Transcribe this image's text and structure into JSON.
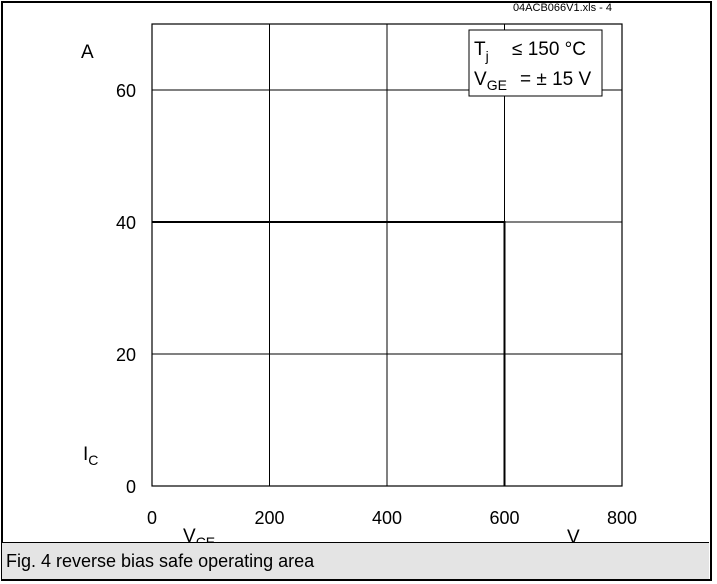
{
  "source_ref": "04ACB066V1.xls - 4",
  "caption": "Fig. 4 reverse bias safe operating area",
  "y_unit": "A",
  "x_unit": "V",
  "y_symbol": {
    "base": "I",
    "sub": "C"
  },
  "x_symbol": {
    "base": "V",
    "sub": "CE"
  },
  "legend": {
    "line1": {
      "base": "T",
      "sub": "j",
      "rest": "≤ 150 °C"
    },
    "line2": {
      "base": "V",
      "sub": "GE",
      "rest": "= ± 15 V"
    }
  },
  "chart_data": {
    "type": "line",
    "title": "",
    "xlabel": "V_CE (V)",
    "ylabel": "I_C (A)",
    "xlim": [
      0,
      800
    ],
    "ylim": [
      0,
      70
    ],
    "x_ticks": [
      0,
      200,
      400,
      600,
      800
    ],
    "y_ticks": [
      0,
      20,
      40,
      60
    ],
    "grid": true,
    "series": [
      {
        "x": [
          0,
          600,
          600
        ],
        "y": [
          40,
          40,
          0
        ]
      }
    ]
  }
}
